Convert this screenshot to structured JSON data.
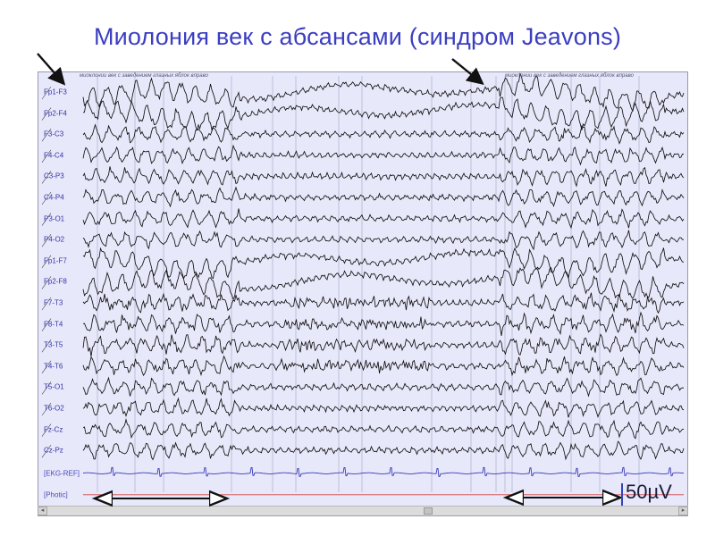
{
  "title": "Миолония век с абсансами (синдром Jeavons)",
  "annotation_text": "миоклонии век с заведением глазных яблок вправо",
  "channels": [
    "Fp1-F3",
    "Fp2-F4",
    "F3-C3",
    "F4-C4",
    "C3-P3",
    "C4-P4",
    "P3-O1",
    "P4-O2",
    "Fp1-F7",
    "Fp2-F8",
    "F7-T3",
    "F8-T4",
    "T3-T5",
    "T4-T6",
    "T5-O1",
    "T6-O2",
    "Fz-Cz",
    "Cz-Pz"
  ],
  "aux_channels": [
    "[EKG-REF]",
    "[Photic]"
  ],
  "scale_label": "50µV",
  "colors": {
    "title": "#3b3ec2",
    "trace": "#111111",
    "ekg": "#3a3ab8",
    "photic": "#d04040",
    "background": "#e8e8fb"
  }
}
